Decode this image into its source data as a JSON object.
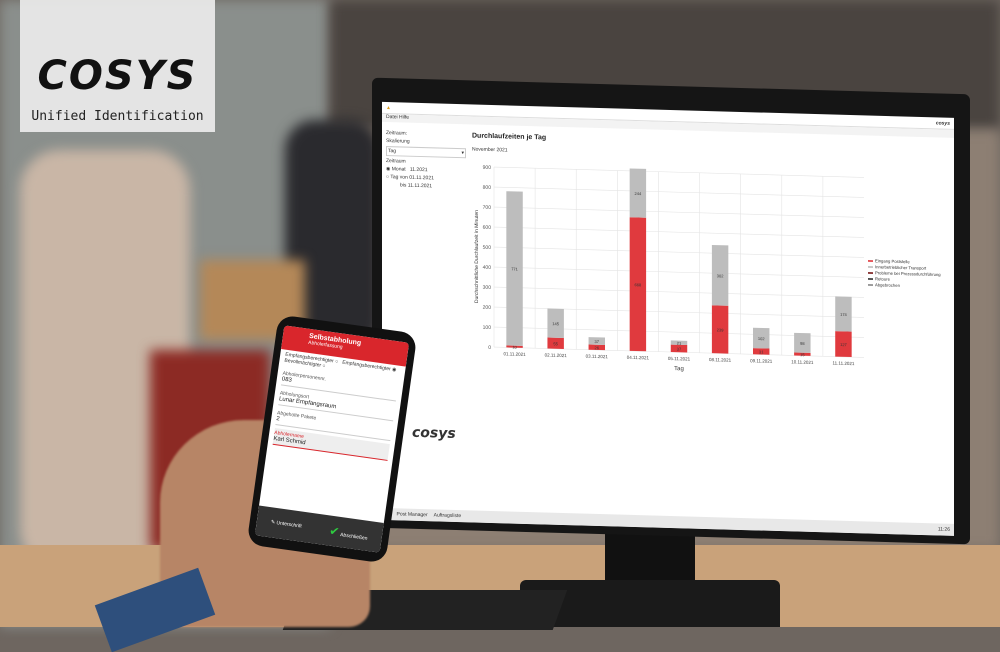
{
  "logo": {
    "brand": "COSYS",
    "tagline": "Unified Identification"
  },
  "window": {
    "brand": "cosys",
    "menu": "Datei   Hilfe"
  },
  "filter": {
    "heading": "Zeitraum:",
    "scale_label": "Skalierung",
    "scale_value": "Tag",
    "range_label": "Zeitraum",
    "month_option": "Monat",
    "month_value": "11.2021",
    "day_option": "Tag",
    "from_label": "von",
    "from_value": "01.11.2021",
    "to_label": "bis",
    "to_value": "11.11.2021"
  },
  "taskbar": {
    "items": [
      "Post Manager",
      "Auftragsliste"
    ],
    "time": "11:26"
  },
  "chart_data": {
    "type": "bar",
    "stacked": true,
    "title": "Durchlaufzeiten je Tag",
    "subtitle": "November 2021",
    "xlabel": "Tag",
    "ylabel": "Durchschnittliche Durchlaufzeit in Minuten",
    "ylim": [
      0,
      900
    ],
    "grid": true,
    "legend_position": "right",
    "categories": [
      "01.11.2021",
      "02.11.2021",
      "03.11.2021",
      "04.11.2021",
      "05.11.2021",
      "08.11.2021",
      "09.11.2021",
      "10.11.2021",
      "11.11.2021"
    ],
    "series": [
      {
        "name": "Eingang Poststelle",
        "color": "#e03a3e",
        "values": [
          10,
          55,
          26,
          668,
          37,
          239,
          31,
          15,
          127
        ]
      },
      {
        "name": "Innerbetrieblicher Transport",
        "color": "#bdbdbd",
        "values": [
          771,
          145,
          37,
          244,
          21,
          302,
          102,
          98,
          174
        ]
      },
      {
        "name": "Probleme bei Prozessdurchführung",
        "color": "#7a1a1a",
        "values": [
          0,
          0,
          0,
          0,
          0,
          0,
          0,
          0,
          0
        ]
      },
      {
        "name": "Retoure",
        "color": "#333333",
        "values": [
          0,
          0,
          0,
          0,
          0,
          0,
          0,
          0,
          0
        ]
      },
      {
        "name": "Abgebrochen",
        "color": "#888888",
        "values": [
          0,
          0,
          0,
          0,
          0,
          0,
          0,
          0,
          0
        ]
      }
    ]
  },
  "phone": {
    "title": "Selbstabholung",
    "subtitle": "Abholerfassung",
    "option1": "Empfangsberechtigter",
    "option2": "Empfangsberechtigter",
    "option3": "Bevollmächtigter",
    "fields": [
      {
        "label": "Abholerpersonennr.",
        "value": "083"
      },
      {
        "label": "Abholungsort",
        "value": "Lunar Empfangsraum"
      },
      {
        "label": "Abgeholte Pakete",
        "value": "2"
      },
      {
        "label": "Abholername",
        "value": "Karl Schmid"
      }
    ],
    "left_button": "Unterschrift",
    "right_button": "Abschließen"
  }
}
